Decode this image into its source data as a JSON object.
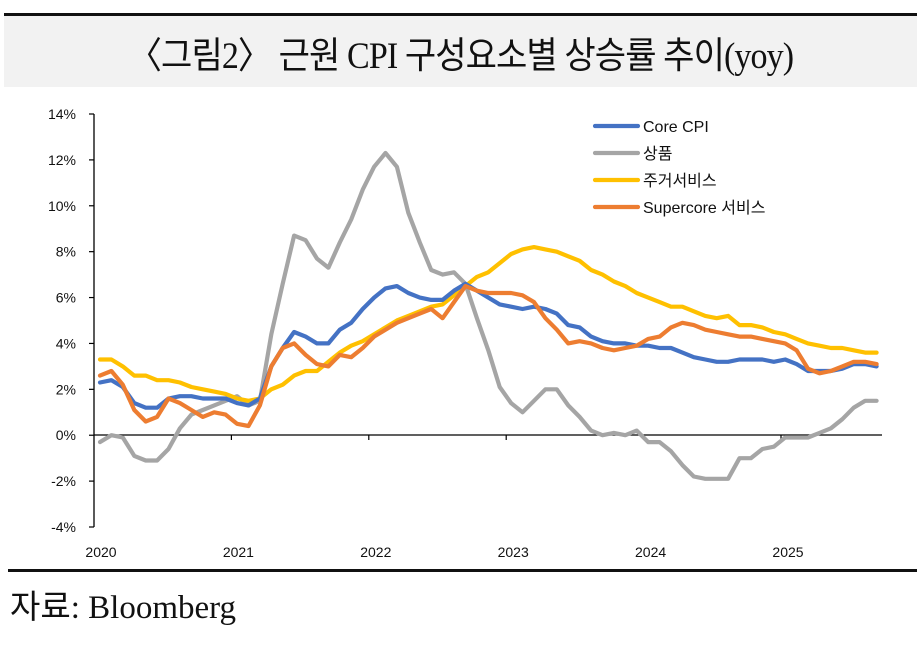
{
  "figure": {
    "title": "〈그림2〉 근원 CPI 구성요소별 상승률 추이(yoy)",
    "source": "자료: Bloomberg"
  },
  "colors": {
    "core_cpi": "#4472c4",
    "goods": "#a5a5a5",
    "shelter": "#ffc000",
    "supercore": "#ed7d31"
  },
  "chart_data": {
    "type": "line",
    "title": "근원 CPI 구성요소별 상승률 추이(yoy)",
    "xlabel": "",
    "ylabel": "",
    "ylim": [
      -4,
      14
    ],
    "ytick_step": 2,
    "yticks": [
      "14%",
      "12%",
      "10%",
      "8%",
      "6%",
      "4%",
      "2%",
      "0%",
      "-2%",
      "-4%"
    ],
    "xticks": [
      "2020",
      "2021",
      "2022",
      "2023",
      "2024",
      "2025"
    ],
    "x_start": "2020-01",
    "x_frequency": "monthly",
    "x_end": "2025-09",
    "grid": false,
    "legend_position": "top-right",
    "series": [
      {
        "name": "Core CPI",
        "key": "core_cpi",
        "values": [
          2.3,
          2.4,
          2.1,
          1.4,
          1.2,
          1.2,
          1.6,
          1.7,
          1.7,
          1.6,
          1.6,
          1.6,
          1.4,
          1.3,
          1.6,
          3.0,
          3.8,
          4.5,
          4.3,
          4.0,
          4.0,
          4.6,
          4.9,
          5.5,
          6.0,
          6.4,
          6.5,
          6.2,
          6.0,
          5.9,
          5.9,
          6.3,
          6.6,
          6.3,
          6.0,
          5.7,
          5.6,
          5.5,
          5.6,
          5.5,
          5.3,
          4.8,
          4.7,
          4.3,
          4.1,
          4.0,
          4.0,
          3.9,
          3.9,
          3.8,
          3.8,
          3.6,
          3.4,
          3.3,
          3.2,
          3.2,
          3.3,
          3.3,
          3.3,
          3.2,
          3.3,
          3.1,
          2.8,
          2.8,
          2.8,
          2.9,
          3.1,
          3.1,
          3.0
        ]
      },
      {
        "name": "상품",
        "key": "goods",
        "values": [
          -0.3,
          0.0,
          -0.1,
          -0.9,
          -1.1,
          -1.1,
          -0.6,
          0.3,
          0.9,
          1.1,
          1.3,
          1.5,
          1.7,
          1.3,
          1.5,
          4.4,
          6.6,
          8.7,
          8.5,
          7.7,
          7.3,
          8.4,
          9.4,
          10.7,
          11.7,
          12.3,
          11.7,
          9.7,
          8.4,
          7.2,
          7.0,
          7.1,
          6.6,
          5.1,
          3.7,
          2.1,
          1.4,
          1.0,
          1.5,
          2.0,
          2.0,
          1.3,
          0.8,
          0.2,
          0.0,
          0.1,
          0.0,
          0.2,
          -0.3,
          -0.3,
          -0.7,
          -1.3,
          -1.8,
          -1.9,
          -1.9,
          -1.9,
          -1.0,
          -1.0,
          -0.6,
          -0.5,
          -0.1,
          -0.1,
          -0.1,
          0.1,
          0.3,
          0.7,
          1.2,
          1.5,
          1.5
        ]
      },
      {
        "name": "주거서비스",
        "key": "shelter",
        "values": [
          3.3,
          3.3,
          3.0,
          2.6,
          2.6,
          2.4,
          2.4,
          2.3,
          2.1,
          2.0,
          1.9,
          1.8,
          1.6,
          1.5,
          1.6,
          2.0,
          2.2,
          2.6,
          2.8,
          2.8,
          3.2,
          3.6,
          3.9,
          4.1,
          4.4,
          4.7,
          5.0,
          5.2,
          5.4,
          5.6,
          5.7,
          6.1,
          6.5,
          6.9,
          7.1,
          7.5,
          7.9,
          8.1,
          8.2,
          8.1,
          8.0,
          7.8,
          7.6,
          7.2,
          7.0,
          6.7,
          6.5,
          6.2,
          6.0,
          5.8,
          5.6,
          5.6,
          5.4,
          5.2,
          5.1,
          5.2,
          4.8,
          4.8,
          4.7,
          4.5,
          4.4,
          4.2,
          4.0,
          3.9,
          3.8,
          3.8,
          3.7,
          3.6,
          3.6
        ]
      },
      {
        "name": "Supercore 서비스",
        "key": "supercore",
        "values": [
          2.6,
          2.8,
          2.2,
          1.1,
          0.6,
          0.8,
          1.6,
          1.4,
          1.1,
          0.8,
          1.0,
          0.9,
          0.5,
          0.4,
          1.3,
          3.0,
          3.8,
          4.0,
          3.5,
          3.1,
          3.0,
          3.5,
          3.4,
          3.8,
          4.3,
          4.6,
          4.9,
          5.1,
          5.3,
          5.5,
          5.1,
          5.8,
          6.5,
          6.3,
          6.2,
          6.2,
          6.2,
          6.1,
          5.8,
          5.1,
          4.6,
          4.0,
          4.1,
          4.0,
          3.8,
          3.7,
          3.8,
          3.9,
          4.2,
          4.3,
          4.7,
          4.9,
          4.8,
          4.6,
          4.5,
          4.4,
          4.3,
          4.3,
          4.2,
          4.1,
          4.0,
          3.7,
          2.9,
          2.7,
          2.8,
          3.0,
          3.2,
          3.2,
          3.1
        ]
      }
    ]
  }
}
